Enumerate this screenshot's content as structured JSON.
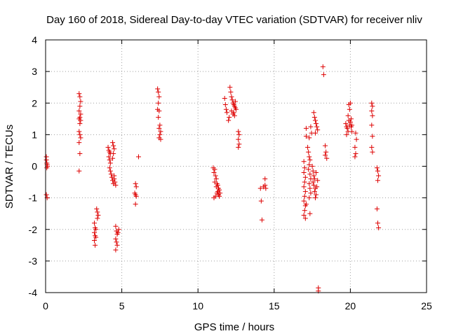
{
  "chart_data": {
    "type": "scatter",
    "title": "Day 160 of 2018, Sidereal Day-to-day VTEC variation (SDTVAR) for receiver nliv",
    "xlabel": "GPS time / hours",
    "ylabel": "SDTVAR / TECUs",
    "xlim": [
      0,
      25
    ],
    "ylim": [
      -4,
      4
    ],
    "xticks": [
      "0",
      "5",
      "10",
      "15",
      "20",
      "25"
    ],
    "yticks": [
      "-4",
      "-3",
      "-2",
      "-1",
      "0",
      "1",
      "2",
      "3",
      "4"
    ],
    "grid": true,
    "marker": "+",
    "color": "#dd0000",
    "series": [
      {
        "name": "SDTVAR",
        "points": [
          [
            0.05,
            0.3
          ],
          [
            0.05,
            0.2
          ],
          [
            0.08,
            0.1
          ],
          [
            0.1,
            0.05
          ],
          [
            0.12,
            0.0
          ],
          [
            0.08,
            -0.05
          ],
          [
            0.05,
            -0.9
          ],
          [
            0.1,
            -1.0
          ],
          [
            2.2,
            2.3
          ],
          [
            2.25,
            2.2
          ],
          [
            2.3,
            2.05
          ],
          [
            2.25,
            1.9
          ],
          [
            2.2,
            1.75
          ],
          [
            2.3,
            1.65
          ],
          [
            2.25,
            1.55
          ],
          [
            2.2,
            1.5
          ],
          [
            2.3,
            1.45
          ],
          [
            2.25,
            1.35
          ],
          [
            2.2,
            1.1
          ],
          [
            2.25,
            1.0
          ],
          [
            2.3,
            0.9
          ],
          [
            2.2,
            0.75
          ],
          [
            2.25,
            0.4
          ],
          [
            2.2,
            -0.15
          ],
          [
            3.2,
            -1.8
          ],
          [
            3.25,
            -1.95
          ],
          [
            3.2,
            -2.1
          ],
          [
            3.25,
            -2.2
          ],
          [
            3.3,
            -2.25
          ],
          [
            3.2,
            -2.35
          ],
          [
            3.25,
            -2.5
          ],
          [
            3.3,
            -2.0
          ],
          [
            3.35,
            -1.35
          ],
          [
            3.4,
            -1.45
          ],
          [
            3.45,
            -1.55
          ],
          [
            3.4,
            -1.65
          ],
          [
            4.1,
            0.6
          ],
          [
            4.15,
            0.5
          ],
          [
            4.2,
            0.45
          ],
          [
            4.25,
            0.4
          ],
          [
            4.15,
            0.3
          ],
          [
            4.2,
            0.2
          ],
          [
            4.25,
            0.1
          ],
          [
            4.4,
            0.75
          ],
          [
            4.45,
            0.65
          ],
          [
            4.5,
            0.55
          ],
          [
            4.45,
            0.4
          ],
          [
            4.4,
            0.25
          ],
          [
            4.2,
            -0.05
          ],
          [
            4.25,
            -0.15
          ],
          [
            4.3,
            -0.25
          ],
          [
            4.35,
            -0.35
          ],
          [
            4.4,
            -0.45
          ],
          [
            4.45,
            -0.55
          ],
          [
            4.5,
            -0.4
          ],
          [
            4.55,
            -0.5
          ],
          [
            4.6,
            -0.6
          ],
          [
            4.5,
            -0.3
          ],
          [
            4.6,
            -1.9
          ],
          [
            4.65,
            -2.05
          ],
          [
            4.7,
            -2.15
          ],
          [
            4.6,
            -2.3
          ],
          [
            4.65,
            -2.4
          ],
          [
            4.7,
            -2.5
          ],
          [
            4.6,
            -2.65
          ],
          [
            4.75,
            -2.1
          ],
          [
            4.8,
            -2.0
          ],
          [
            5.9,
            -0.55
          ],
          [
            5.95,
            -0.65
          ],
          [
            5.85,
            -0.85
          ],
          [
            5.9,
            -0.9
          ],
          [
            5.95,
            -0.95
          ],
          [
            5.9,
            -1.2
          ],
          [
            6.1,
            0.3
          ],
          [
            7.35,
            2.45
          ],
          [
            7.4,
            2.35
          ],
          [
            7.45,
            2.2
          ],
          [
            7.4,
            2.0
          ],
          [
            7.35,
            1.8
          ],
          [
            7.45,
            1.75
          ],
          [
            7.4,
            1.55
          ],
          [
            7.5,
            1.3
          ],
          [
            7.45,
            1.2
          ],
          [
            7.55,
            1.1
          ],
          [
            7.5,
            1.0
          ],
          [
            7.45,
            0.9
          ],
          [
            7.55,
            0.85
          ],
          [
            11.0,
            -0.05
          ],
          [
            11.1,
            -0.1
          ],
          [
            11.05,
            -0.2
          ],
          [
            11.15,
            -0.3
          ],
          [
            11.2,
            -0.4
          ],
          [
            11.1,
            -0.5
          ],
          [
            11.25,
            -0.55
          ],
          [
            11.3,
            -0.6
          ],
          [
            11.2,
            -0.65
          ],
          [
            11.35,
            -0.7
          ],
          [
            11.4,
            -0.75
          ],
          [
            11.3,
            -0.8
          ],
          [
            11.25,
            -0.85
          ],
          [
            11.35,
            -0.9
          ],
          [
            11.45,
            -0.85
          ],
          [
            11.15,
            -0.95
          ],
          [
            11.05,
            -1.0
          ],
          [
            11.4,
            -0.95
          ],
          [
            11.75,
            2.15
          ],
          [
            11.8,
            1.95
          ],
          [
            11.85,
            1.8
          ],
          [
            11.9,
            1.7
          ],
          [
            12.0,
            1.45
          ],
          [
            12.05,
            1.55
          ],
          [
            12.1,
            2.5
          ],
          [
            12.15,
            2.35
          ],
          [
            12.2,
            2.2
          ],
          [
            12.25,
            2.1
          ],
          [
            12.3,
            2.0
          ],
          [
            12.35,
            1.95
          ],
          [
            12.4,
            1.9
          ],
          [
            12.45,
            1.85
          ],
          [
            12.5,
            1.8
          ],
          [
            12.2,
            1.75
          ],
          [
            12.35,
            1.7
          ],
          [
            12.3,
            1.65
          ],
          [
            12.4,
            1.6
          ],
          [
            12.45,
            2.05
          ],
          [
            12.65,
            1.1
          ],
          [
            12.7,
            1.0
          ],
          [
            12.65,
            0.85
          ],
          [
            12.7,
            0.7
          ],
          [
            12.65,
            0.6
          ],
          [
            14.1,
            -0.7
          ],
          [
            14.15,
            -1.1
          ],
          [
            14.2,
            -1.7
          ],
          [
            14.3,
            -0.65
          ],
          [
            14.4,
            -0.6
          ],
          [
            14.45,
            -0.7
          ],
          [
            14.4,
            -0.4
          ],
          [
            16.95,
            0.15
          ],
          [
            17.0,
            -0.05
          ],
          [
            16.95,
            -0.2
          ],
          [
            17.05,
            -0.35
          ],
          [
            17.0,
            -0.5
          ],
          [
            16.95,
            -0.65
          ],
          [
            17.05,
            -0.8
          ],
          [
            17.0,
            -0.95
          ],
          [
            16.95,
            -1.1
          ],
          [
            17.05,
            -1.25
          ],
          [
            17.0,
            -1.4
          ],
          [
            16.95,
            -1.55
          ],
          [
            17.05,
            -1.65
          ],
          [
            17.1,
            -1.2
          ],
          [
            17.1,
            1.2
          ],
          [
            17.1,
            0.95
          ],
          [
            17.2,
            0.6
          ],
          [
            17.25,
            0.45
          ],
          [
            17.3,
            0.3
          ],
          [
            17.35,
            0.2
          ],
          [
            17.3,
            0.05
          ],
          [
            17.25,
            -0.1
          ],
          [
            17.35,
            -0.25
          ],
          [
            17.4,
            -0.4
          ],
          [
            17.3,
            -0.55
          ],
          [
            17.35,
            -0.7
          ],
          [
            17.4,
            -0.85
          ],
          [
            17.3,
            -1.0
          ],
          [
            17.35,
            -1.5
          ],
          [
            17.4,
            1.25
          ],
          [
            17.45,
            1.05
          ],
          [
            17.3,
            0.9
          ],
          [
            17.5,
            0.0
          ],
          [
            17.55,
            -0.15
          ],
          [
            17.6,
            -0.3
          ],
          [
            17.65,
            -0.4
          ],
          [
            17.55,
            -0.5
          ],
          [
            17.6,
            -0.6
          ],
          [
            17.7,
            -0.7
          ],
          [
            17.65,
            -0.8
          ],
          [
            17.75,
            -0.9
          ],
          [
            17.7,
            -1.0
          ],
          [
            17.8,
            -0.65
          ],
          [
            17.85,
            -0.45
          ],
          [
            17.75,
            -0.2
          ],
          [
            17.6,
            1.7
          ],
          [
            17.65,
            1.55
          ],
          [
            17.7,
            1.45
          ],
          [
            17.75,
            1.35
          ],
          [
            17.8,
            1.25
          ],
          [
            17.85,
            1.15
          ],
          [
            17.7,
            1.05
          ],
          [
            18.2,
            3.15
          ],
          [
            18.25,
            2.9
          ],
          [
            17.9,
            -3.85
          ],
          [
            17.9,
            -3.95
          ],
          [
            18.35,
            0.65
          ],
          [
            18.4,
            0.45
          ],
          [
            18.35,
            0.35
          ],
          [
            18.45,
            0.25
          ],
          [
            19.7,
            1.35
          ],
          [
            19.75,
            1.25
          ],
          [
            19.8,
            1.2
          ],
          [
            19.85,
            1.1
          ],
          [
            19.75,
            1.0
          ],
          [
            19.9,
            1.45
          ],
          [
            19.95,
            1.3
          ],
          [
            20.0,
            1.4
          ],
          [
            19.85,
            1.6
          ],
          [
            20.05,
            1.5
          ],
          [
            20.1,
            1.3
          ],
          [
            19.9,
            1.95
          ],
          [
            20.0,
            2.0
          ],
          [
            19.95,
            1.8
          ],
          [
            20.05,
            1.25
          ],
          [
            20.1,
            1.1
          ],
          [
            20.3,
            0.6
          ],
          [
            20.35,
            0.4
          ],
          [
            20.3,
            0.3
          ],
          [
            20.4,
            0.85
          ],
          [
            20.35,
            1.05
          ],
          [
            21.4,
            2.0
          ],
          [
            21.45,
            1.9
          ],
          [
            21.4,
            1.75
          ],
          [
            21.45,
            1.6
          ],
          [
            21.4,
            1.3
          ],
          [
            21.45,
            0.95
          ],
          [
            21.4,
            0.6
          ],
          [
            21.45,
            0.45
          ],
          [
            21.75,
            -0.05
          ],
          [
            21.8,
            -0.15
          ],
          [
            21.85,
            -0.3
          ],
          [
            21.8,
            -0.45
          ],
          [
            21.75,
            -1.35
          ],
          [
            21.8,
            -1.8
          ],
          [
            21.85,
            -1.95
          ]
        ]
      }
    ]
  }
}
